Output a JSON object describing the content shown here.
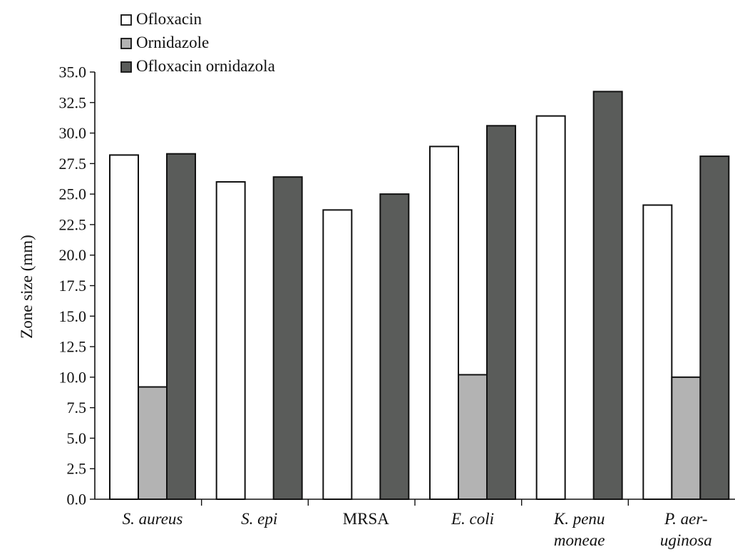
{
  "chart_data": {
    "type": "bar",
    "title": "",
    "xlabel": "",
    "ylabel": "Zone size (mm)",
    "ylim": [
      0,
      35
    ],
    "yticks": [
      "0.0",
      "2.5",
      "5.0",
      "7.5",
      "10.0",
      "12.5",
      "15.0",
      "17.5",
      "20.0",
      "22.5",
      "25.0",
      "27.5",
      "30.0",
      "32.5",
      "35.0"
    ],
    "grid": false,
    "legend_position": "top-left",
    "categories": [
      [
        "S. aureus"
      ],
      [
        "S. epi"
      ],
      [
        "MRSA"
      ],
      [
        "E. coli"
      ],
      [
        "K. penu",
        "moneae"
      ],
      [
        "P. aer-",
        "uginosa"
      ]
    ],
    "category_italic": [
      true,
      true,
      false,
      true,
      true,
      true
    ],
    "series": [
      {
        "name": "Ofloxacin",
        "color": "#ffffff",
        "values": [
          28.2,
          26.0,
          23.7,
          28.9,
          31.4,
          24.1
        ]
      },
      {
        "name": "Ornidazole",
        "color": "#b3b3b3",
        "values": [
          9.2,
          0,
          0,
          10.2,
          0,
          10.0
        ]
      },
      {
        "name": "Ofloxacin ornidazola",
        "color": "#5a5c5a",
        "values": [
          28.3,
          26.4,
          25.0,
          30.6,
          33.4,
          28.1
        ]
      }
    ]
  }
}
